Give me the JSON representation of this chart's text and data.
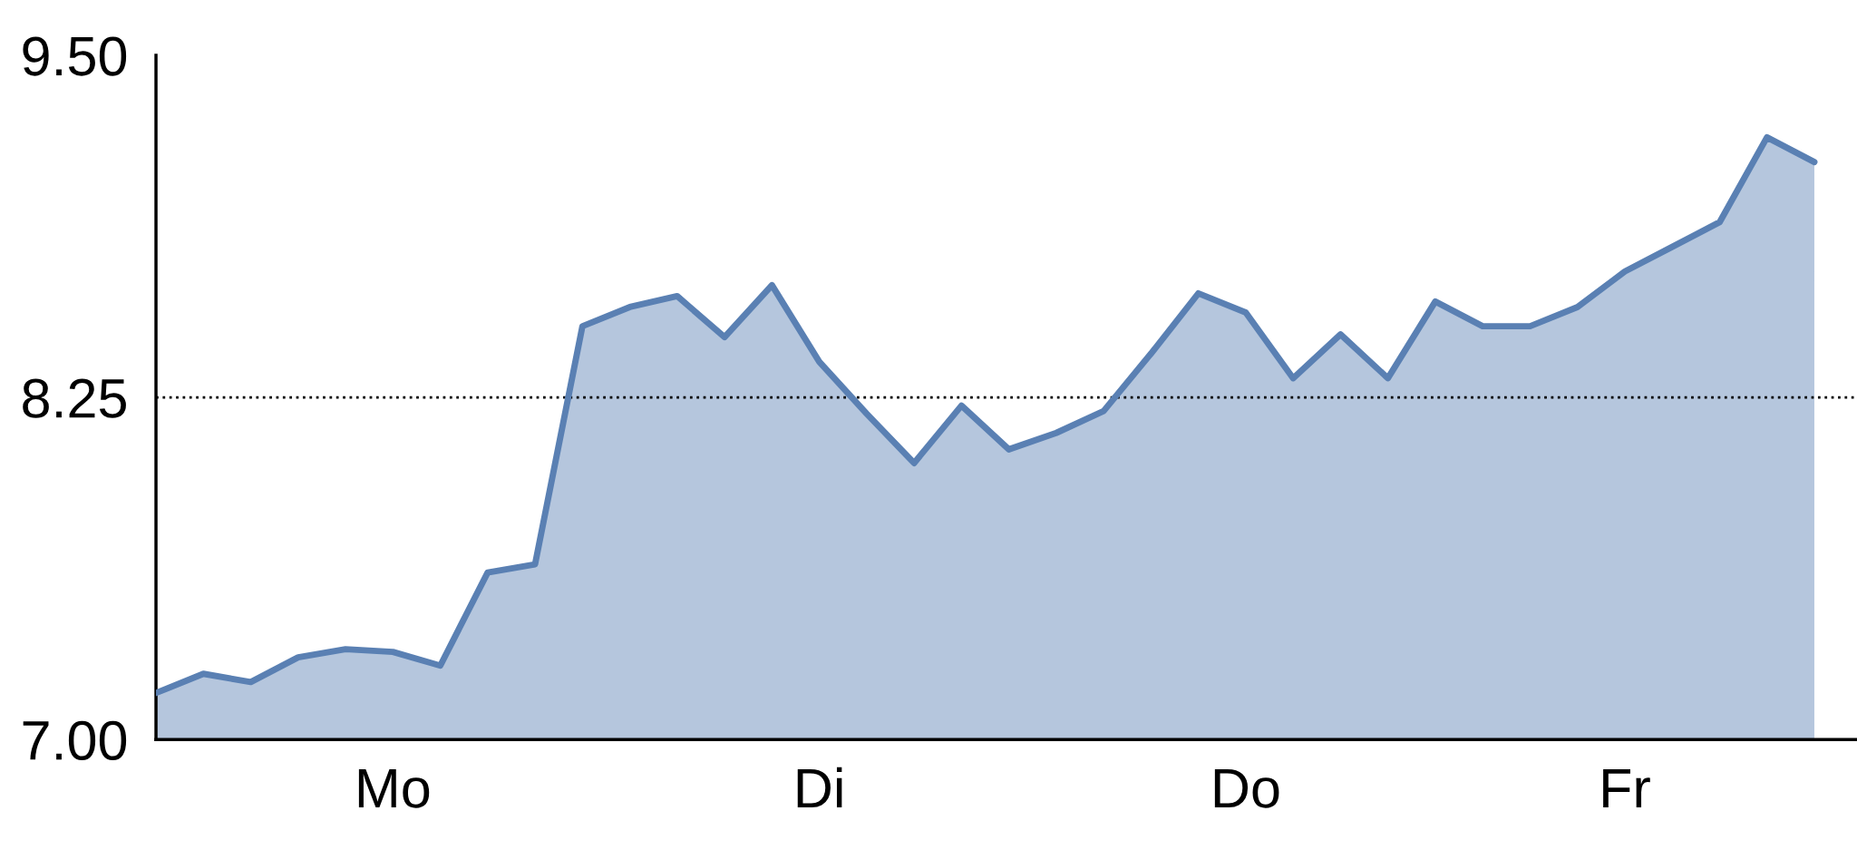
{
  "chart_data": {
    "type": "area",
    "categories": [
      null,
      null,
      null,
      null,
      null,
      "Mo",
      null,
      null,
      null,
      null,
      null,
      null,
      null,
      null,
      "Di",
      null,
      null,
      null,
      null,
      null,
      null,
      null,
      null,
      "Do",
      null,
      null,
      null,
      null,
      null,
      null,
      null,
      "Fr",
      null,
      null,
      null,
      null
    ],
    "series": [
      {
        "color": "#5a80b3",
        "values": [
          7.17,
          7.24,
          7.21,
          7.3,
          7.33,
          7.32,
          7.27,
          7.61,
          7.64,
          8.51,
          8.58,
          8.62,
          8.47,
          8.66,
          8.38,
          8.19,
          8.01,
          8.22,
          8.06,
          8.12,
          8.2,
          8.41,
          8.63,
          8.56,
          8.32,
          8.48,
          8.32,
          8.6,
          8.51,
          8.51,
          8.58,
          8.71,
          8.8,
          8.89,
          9.2,
          9.11
        ]
      }
    ],
    "ylim": [
      7.0,
      9.5
    ],
    "yticks": [
      {
        "value": 7.0,
        "label": "7.00"
      },
      {
        "value": 8.25,
        "label": "8.25"
      },
      {
        "value": 9.5,
        "label": "9.50"
      }
    ],
    "ref_lines": [
      {
        "axis": "y",
        "value": 8.25,
        "color": "#000000",
        "line_style": "dotted"
      }
    ],
    "grid": false,
    "legend": false,
    "line_style": "solid",
    "marker": "none"
  }
}
